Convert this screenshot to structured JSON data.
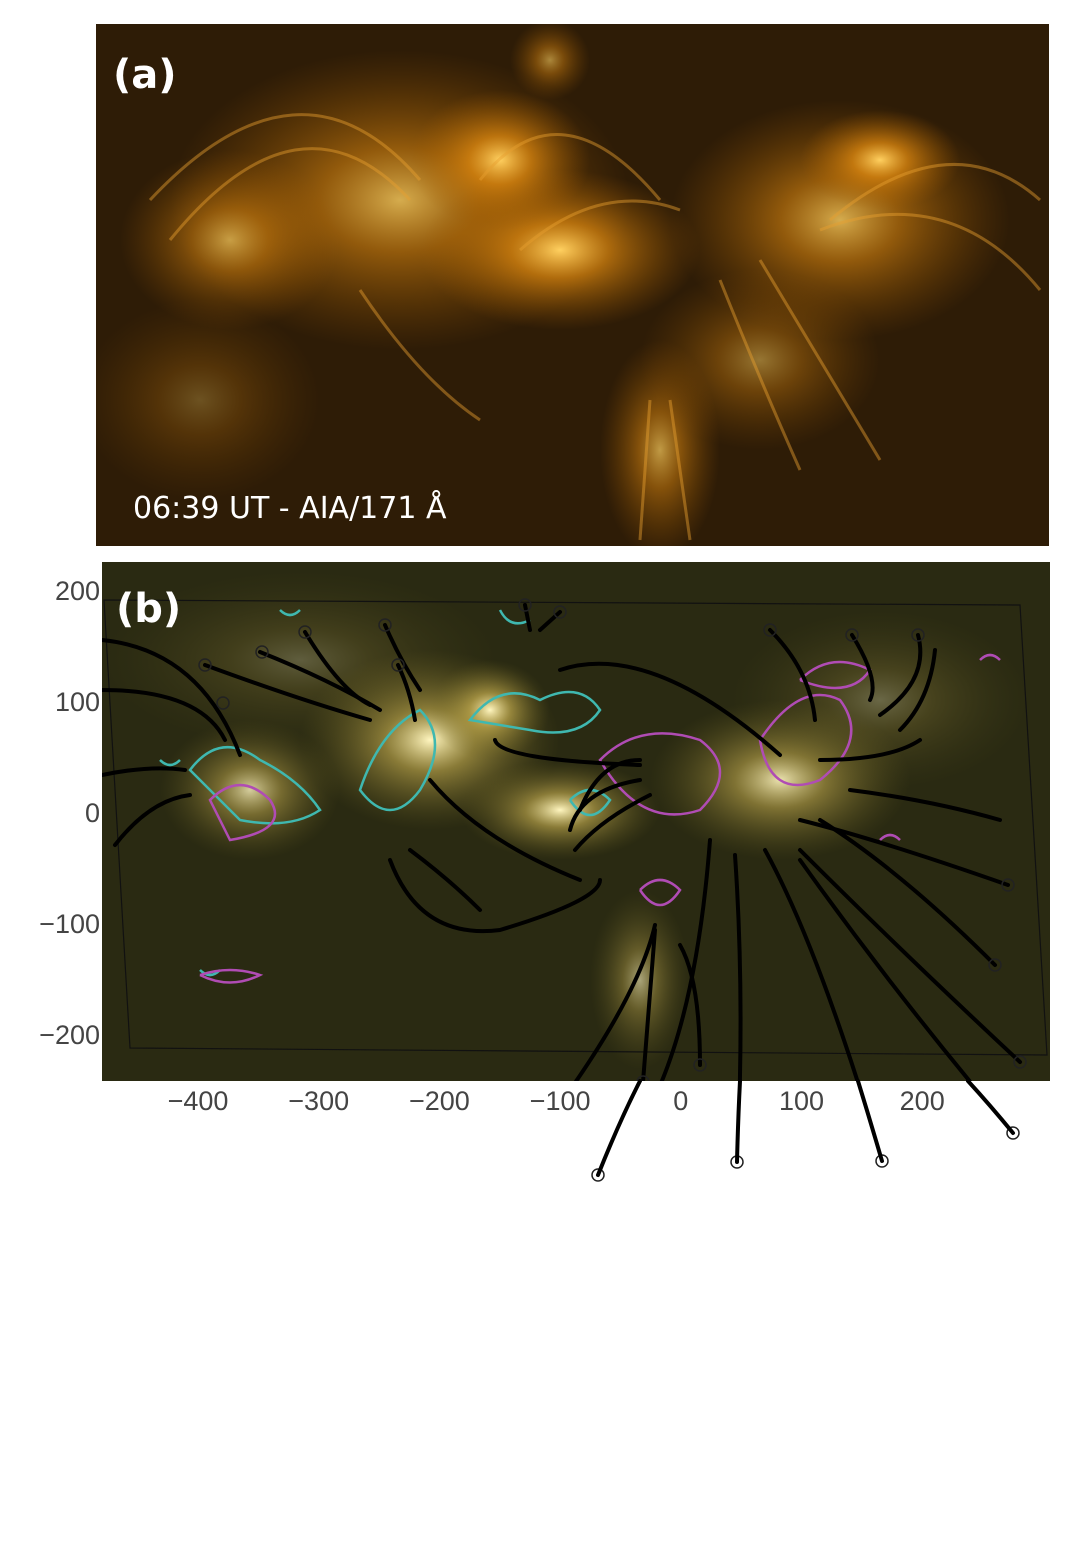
{
  "panels": [
    {
      "label": "(a)",
      "caption": "06:39 UT - AIA/171 Å"
    },
    {
      "label": "(b)",
      "x_axis": {
        "ticks": [
          "−400",
          "−300",
          "−200",
          "−100",
          "0",
          "100",
          "200"
        ]
      },
      "y_axis": {
        "ticks": [
          "200",
          "100",
          "0",
          "−100",
          "−200"
        ]
      }
    }
  ]
}
